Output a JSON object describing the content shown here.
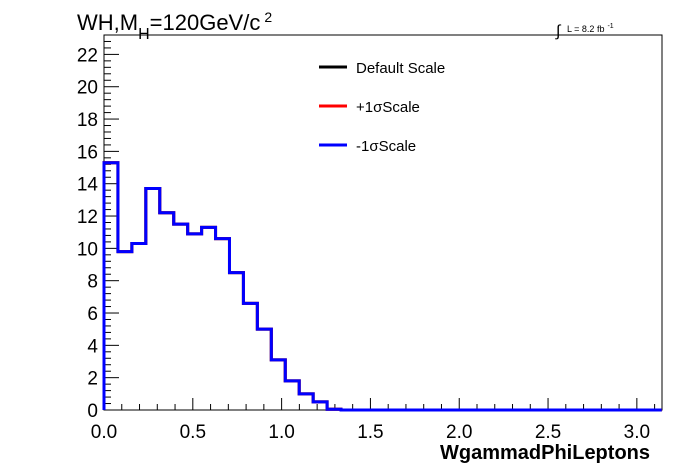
{
  "chart_data": {
    "type": "line",
    "title_main": "WH,M",
    "title_sub": "H",
    "title_rest": "=120GeV/c",
    "title_sup": "2",
    "lumi_integral": "∫",
    "lumi_text": "L = 8.2 fb",
    "lumi_sup": "-1",
    "xlabel": "WgammadPhiLeptons",
    "xlim": [
      0,
      3.1416
    ],
    "ylim": [
      0,
      23.2
    ],
    "xticks": [
      "0.0",
      "0.5",
      "1.0",
      "1.5",
      "2.0",
      "2.5",
      "3.0"
    ],
    "yticks": [
      "0",
      "2",
      "4",
      "6",
      "8",
      "10",
      "12",
      "14",
      "16",
      "18",
      "20",
      "22"
    ],
    "legend_position": "top-center",
    "grid": false,
    "bin_width": 0.0785,
    "series": [
      {
        "name": "Default Scale",
        "color": "#000000",
        "values": [
          15.3,
          9.8,
          10.3,
          13.7,
          12.2,
          11.5,
          10.9,
          11.3,
          10.6,
          8.5,
          6.6,
          5.0,
          3.1,
          1.8,
          1.0,
          0.5,
          0.05,
          0,
          0,
          0,
          0,
          0,
          0,
          0,
          0,
          0,
          0,
          0,
          0,
          0,
          0,
          0,
          0,
          0,
          0,
          0,
          0,
          0,
          0,
          0
        ]
      },
      {
        "name": "+1σScale",
        "color": "#ff0000",
        "values": [
          15.3,
          9.8,
          10.3,
          13.7,
          12.2,
          11.5,
          10.9,
          11.3,
          10.6,
          8.5,
          6.6,
          5.0,
          3.1,
          1.8,
          1.0,
          0.5,
          0.05,
          0,
          0,
          0,
          0,
          0,
          0,
          0,
          0,
          0,
          0,
          0,
          0,
          0,
          0,
          0,
          0,
          0,
          0,
          0,
          0,
          0,
          0,
          0
        ]
      },
      {
        "name": "-1σScale",
        "color": "#0000ff",
        "values": [
          15.3,
          9.8,
          10.3,
          13.7,
          12.2,
          11.5,
          10.9,
          11.3,
          10.6,
          8.5,
          6.6,
          5.0,
          3.1,
          1.8,
          1.0,
          0.5,
          0.05,
          0,
          0,
          0,
          0,
          0,
          0,
          0,
          0,
          0,
          0,
          0,
          0,
          0,
          0,
          0,
          0,
          0,
          0,
          0,
          0,
          0,
          0,
          0
        ]
      }
    ]
  }
}
